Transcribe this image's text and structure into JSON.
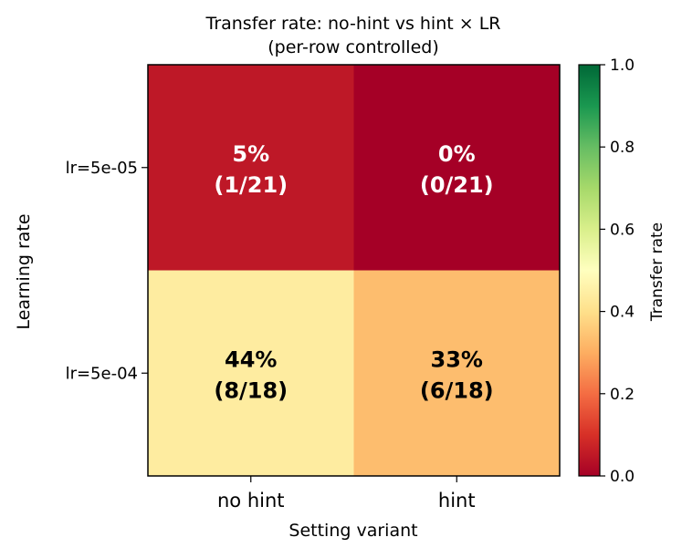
{
  "chart_data": {
    "type": "heatmap",
    "title_line1": "Transfer rate: no-hint vs hint × LR",
    "title_line2": "(per-row controlled)",
    "xlabel": "Setting variant",
    "ylabel": "Learning rate",
    "x_categories": [
      "no hint",
      "hint"
    ],
    "y_categories": [
      "lr=5e-05",
      "lr=5e-04"
    ],
    "values": [
      [
        0.05,
        0.0
      ],
      [
        0.44,
        0.33
      ]
    ],
    "cell_labels": [
      [
        [
          "5%",
          "(1/21)"
        ],
        [
          "0%",
          "(0/21)"
        ]
      ],
      [
        [
          "44%",
          "(8/18)"
        ],
        [
          "33%",
          "(6/18)"
        ]
      ]
    ],
    "colorbar": {
      "label": "Transfer rate",
      "range": [
        0.0,
        1.0
      ],
      "ticks": [
        "0.0",
        "0.2",
        "0.4",
        "0.6",
        "0.8",
        "1.0"
      ],
      "colormap": "RdYlGn"
    }
  }
}
